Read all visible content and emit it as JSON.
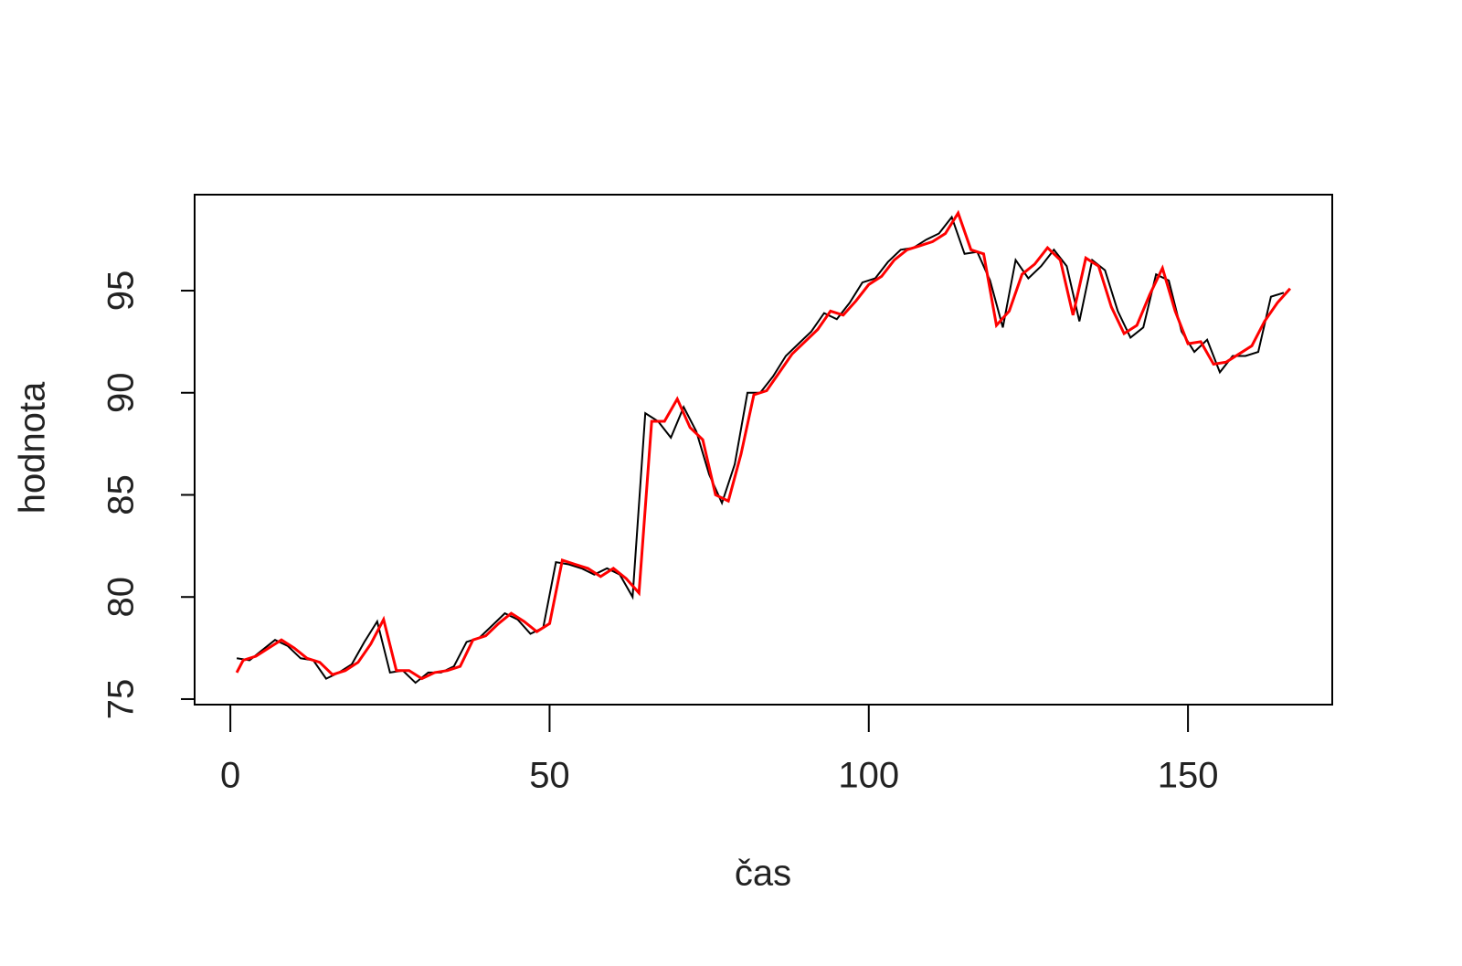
{
  "chart_data": {
    "type": "line",
    "xlabel": "čas",
    "ylabel": "hodnota",
    "xlim": [
      -5.6,
      172.6
    ],
    "ylim": [
      74.73,
      99.7
    ],
    "xticks": [
      0,
      50,
      100,
      150
    ],
    "yticks": [
      75,
      80,
      85,
      90,
      95
    ],
    "series": [
      {
        "name": "black",
        "color": "#000000",
        "x": [
          1,
          3,
          5,
          7,
          9,
          11,
          13,
          15,
          17,
          19,
          21,
          23,
          25,
          27,
          29,
          31,
          33,
          35,
          37,
          39,
          41,
          43,
          45,
          47,
          49,
          51,
          53,
          55,
          57,
          59,
          61,
          63,
          65,
          67,
          69,
          71,
          73,
          75,
          77,
          79,
          81,
          83,
          85,
          87,
          89,
          91,
          93,
          95,
          97,
          99,
          101,
          103,
          105,
          107,
          109,
          111,
          113,
          115,
          117,
          119,
          121,
          123,
          125,
          127,
          129,
          131,
          133,
          135,
          137,
          139,
          141,
          143,
          145,
          147,
          149,
          151,
          153,
          155,
          157,
          159,
          161,
          163,
          165
        ],
        "values": [
          77.0,
          76.9,
          77.4,
          77.9,
          77.6,
          77.0,
          76.9,
          76.0,
          76.3,
          76.7,
          77.8,
          78.8,
          76.3,
          76.4,
          75.8,
          76.3,
          76.3,
          76.6,
          77.8,
          78.0,
          78.6,
          79.2,
          78.9,
          78.2,
          78.5,
          81.7,
          81.6,
          81.4,
          81.1,
          81.4,
          81.1,
          80.0,
          89.0,
          88.6,
          87.8,
          89.3,
          88.1,
          86.0,
          84.6,
          86.5,
          90.0,
          90.0,
          90.8,
          91.8,
          92.4,
          93.0,
          93.9,
          93.6,
          94.4,
          95.4,
          95.6,
          96.4,
          97.0,
          97.1,
          97.5,
          97.8,
          98.6,
          96.8,
          96.9,
          95.5,
          93.2,
          96.5,
          95.6,
          96.2,
          97.0,
          96.2,
          93.5,
          96.5,
          96.0,
          94.0,
          92.7,
          93.2,
          95.8,
          95.5,
          93.0,
          92.0,
          92.6,
          91.0,
          91.8,
          91.8,
          92.0,
          94.7,
          94.9
        ]
      },
      {
        "name": "red",
        "color": "#ff0000",
        "x": [
          1,
          2,
          4,
          6,
          8,
          10,
          12,
          14,
          16,
          18,
          20,
          22,
          24,
          26,
          28,
          30,
          32,
          34,
          36,
          38,
          40,
          42,
          44,
          46,
          48,
          50,
          52,
          54,
          56,
          58,
          60,
          62,
          64,
          66,
          68,
          70,
          72,
          74,
          76,
          78,
          80,
          82,
          84,
          86,
          88,
          90,
          92,
          94,
          96,
          98,
          100,
          102,
          104,
          106,
          108,
          110,
          112,
          114,
          116,
          118,
          120,
          122,
          124,
          126,
          128,
          130,
          132,
          134,
          136,
          138,
          140,
          142,
          144,
          146,
          148,
          150,
          152,
          154,
          156,
          158,
          160,
          162,
          164,
          166
        ],
        "values": [
          76.3,
          76.9,
          77.1,
          77.5,
          77.9,
          77.5,
          77.0,
          76.8,
          76.2,
          76.4,
          76.8,
          77.7,
          78.9,
          76.4,
          76.4,
          76.0,
          76.3,
          76.4,
          76.6,
          77.9,
          78.1,
          78.7,
          79.2,
          78.8,
          78.3,
          78.7,
          81.8,
          81.6,
          81.4,
          81.0,
          81.4,
          80.9,
          80.2,
          88.6,
          88.6,
          89.7,
          88.3,
          87.7,
          85.0,
          84.7,
          87.0,
          89.9,
          90.1,
          91.0,
          91.9,
          92.5,
          93.1,
          94.0,
          93.8,
          94.5,
          95.3,
          95.7,
          96.5,
          97.0,
          97.2,
          97.4,
          97.8,
          98.8,
          97.0,
          96.8,
          93.3,
          94.0,
          95.8,
          96.3,
          97.1,
          96.5,
          93.8,
          96.6,
          96.2,
          94.2,
          92.9,
          93.3,
          94.8,
          96.1,
          94.0,
          92.4,
          92.5,
          91.4,
          91.5,
          91.9,
          92.3,
          93.5,
          94.4,
          95.1
        ]
      }
    ]
  }
}
